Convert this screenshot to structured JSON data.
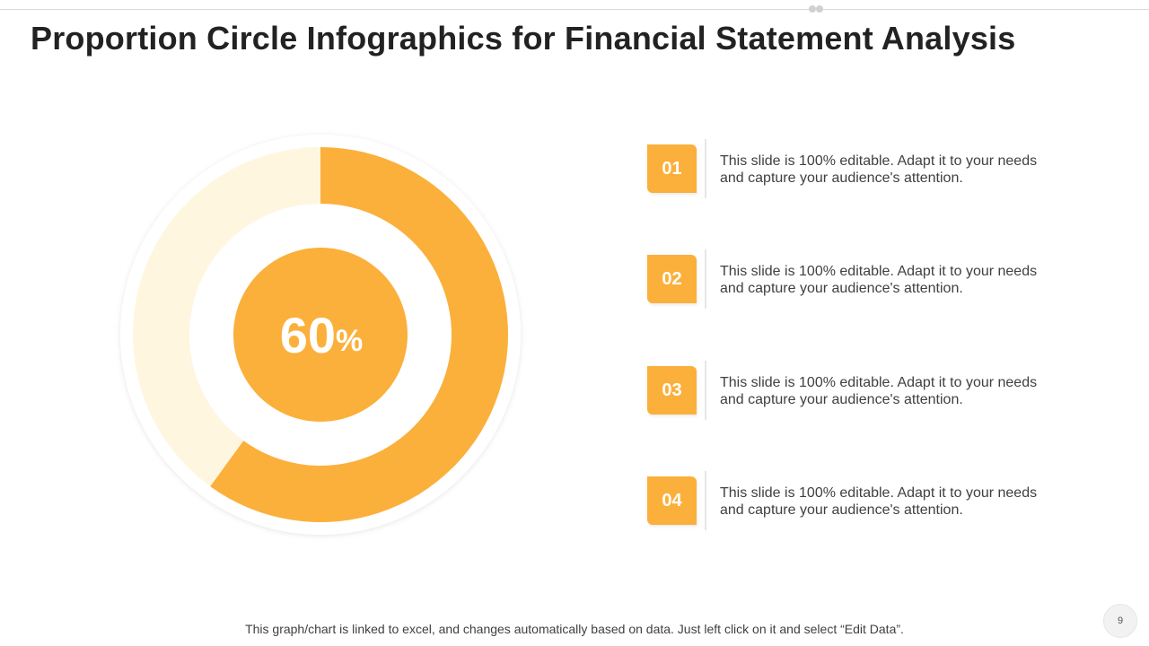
{
  "slide": {
    "title": "Proportion Circle Infographics for Financial Statement Analysis",
    "page_number": "9",
    "footer_note": "This graph/chart is linked to excel, and changes automatically based on data. Just left click on it and select “Edit Data”."
  },
  "colors": {
    "accent": "#fbb03b",
    "remaining": "#fff6e0",
    "center": "#fbb03b",
    "outer_ring": "#ffffff",
    "text": "#404040",
    "title": "#222222"
  },
  "chart_data": {
    "type": "pie",
    "title": "",
    "categories": [
      "",
      ""
    ],
    "values": [
      60,
      40
    ],
    "center_value": "60",
    "center_unit": "%"
  },
  "items": [
    {
      "number": "01",
      "text": "This slide is 100% editable. Adapt it to your needs and capture your audience's attention."
    },
    {
      "number": "02",
      "text": "This slide is 100% editable. Adapt it to your needs and capture your audience's attention."
    },
    {
      "number": "03",
      "text": "This slide is 100% editable. Adapt it to your needs and capture your audience's attention."
    },
    {
      "number": "04",
      "text": "This slide is 100% editable. Adapt it to your needs and capture your audience's attention."
    }
  ]
}
